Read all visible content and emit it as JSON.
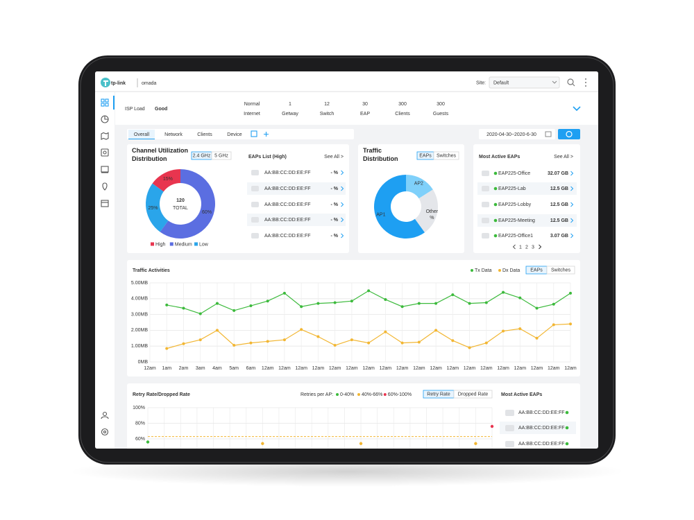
{
  "header": {
    "brand": "tp-link",
    "product": "omada",
    "site_label": "Site:",
    "site": "Default"
  },
  "summary": {
    "label": "ISP Load",
    "status": "Good",
    "stats": [
      {
        "value": "Normal",
        "label": "Internet"
      },
      {
        "value": 1,
        "label": "Getway"
      },
      {
        "value": 12,
        "label": "Switch"
      },
      {
        "value": 30,
        "label": "EAP"
      },
      {
        "value": 300,
        "label": "Clients"
      },
      {
        "value": 300,
        "label": "Guests"
      }
    ]
  },
  "tabs": {
    "items": [
      "Overall",
      "Network",
      "Clients",
      "Device"
    ],
    "date_range": "2020-04-30~2020-6-30"
  },
  "eaps_list": {
    "title": "EAPs List (High)",
    "see_all": "See All >",
    "rows": [
      {
        "mac": "AA:BB:CC:DD:EE:FF",
        "rate": "- %"
      },
      {
        "mac": "AA:BB:CC:DD:EE:FF",
        "rate": "- %"
      },
      {
        "mac": "AA:BB:CC:DD:EE:FF",
        "rate": "- %"
      },
      {
        "mac": "AA:BB:CC:DD:EE:FF",
        "rate": "- %"
      },
      {
        "mac": "AA:BB:CC:DD:EE:FF",
        "rate": "- %"
      }
    ]
  },
  "most_active": {
    "title": "Most Active EAPs",
    "see_all": "See All >",
    "rows": [
      {
        "name": "EAP225-Office",
        "traffic": "32.07 GB"
      },
      {
        "name": "EAP225-Lab",
        "traffic": "12.5 GB"
      },
      {
        "name": "EAP225-Lobby",
        "traffic": "12.5 GB"
      },
      {
        "name": "EAP225-Meeting",
        "traffic": "12.5 GB"
      },
      {
        "name": "EAP225-Office1",
        "traffic": "3.07 GB"
      }
    ],
    "pages": [
      1,
      2,
      3
    ]
  },
  "retry_eaps": {
    "title": "Most Active EAPs",
    "rows": [
      "AA:BB:CC:DD:EE:FF",
      "AA:BB:CC:DD:EE:FF",
      "AA:BB:CC:DD:EE:FF"
    ]
  },
  "chart_data": [
    {
      "type": "pie",
      "title": "Channel Utilization Distribution",
      "bands": [
        "2.4 GHz",
        "5 GHz"
      ],
      "center_value": 120,
      "center_label": "TOTAL",
      "categories": [
        "High",
        "Medium",
        "Low"
      ],
      "values": [
        15,
        60,
        25
      ],
      "value_labels": [
        "15%",
        "60%",
        "25%"
      ],
      "colors": [
        "#e8354f",
        "#5b6ee1",
        "#2aa5ea"
      ]
    },
    {
      "type": "pie",
      "title": "Traffic Distribution",
      "toggle": [
        "EAPs",
        "Switches"
      ],
      "categories": [
        "AP1",
        "AP2",
        "Other"
      ],
      "values": [
        60,
        16,
        24
      ],
      "colors": [
        "#1e9ff2",
        "#7fd0fa",
        "#e4e6ea"
      ],
      "other_note": "%"
    },
    {
      "type": "line",
      "title": "Traffic Activities",
      "toggle": [
        "EAPs",
        "Switches"
      ],
      "categories": [
        "12am",
        "1am",
        "2am",
        "3am",
        "4am",
        "5am",
        "6am",
        "12am",
        "12am",
        "12am",
        "12am",
        "12am",
        "12am",
        "12am",
        "12am",
        "12am",
        "12am",
        "12am",
        "12am",
        "12am",
        "12am",
        "12am",
        "12am",
        "12am",
        "12am",
        "12am"
      ],
      "series": [
        {
          "name": "Tx Data",
          "color": "#3cba3c",
          "values": [
            null,
            3.6,
            3.4,
            3.05,
            3.7,
            3.25,
            3.55,
            3.85,
            4.35,
            3.5,
            3.7,
            3.75,
            3.85,
            4.5,
            3.95,
            3.5,
            3.7,
            3.7,
            4.25,
            3.7,
            3.75,
            4.4,
            4.05,
            3.4,
            3.65,
            4.35
          ]
        },
        {
          "name": "Dx Data",
          "color": "#f2b632",
          "values": [
            null,
            0.85,
            1.15,
            1.4,
            2.0,
            1.05,
            1.2,
            1.3,
            1.4,
            2.05,
            1.6,
            1.05,
            1.4,
            1.2,
            1.9,
            1.2,
            1.25,
            2.0,
            1.35,
            0.9,
            1.2,
            1.95,
            2.1,
            1.5,
            2.35,
            2.4
          ]
        }
      ],
      "ylim": [
        0,
        5
      ],
      "yticks": [
        {
          "value": 0,
          "label": "0MB"
        },
        {
          "value": 1,
          "label": "1.00MB"
        },
        {
          "value": 2,
          "label": "2.00MB"
        },
        {
          "value": 3,
          "label": "3.00MB"
        },
        {
          "value": 4,
          "label": "4.00MB"
        },
        {
          "value": 5,
          "label": "5.00MB"
        }
      ],
      "grid": true
    },
    {
      "type": "scatter",
      "title": "Retry Rate/Dropped Rate",
      "legend_title": "Retries per AP:",
      "toggle": [
        "Retry Rate",
        "Dropped Rate"
      ],
      "series": [
        {
          "name": "0-40%",
          "color": "#3cba3c",
          "x": [
            0
          ],
          "values": [
            56
          ]
        },
        {
          "name": "40%-66%",
          "color": "#f2b632",
          "x": [
            7,
            13,
            20
          ],
          "values": [
            54,
            54,
            54
          ]
        },
        {
          "name": "60%-100%",
          "color": "#e8354f",
          "x": [
            21
          ],
          "values": [
            76
          ]
        }
      ],
      "xlim": [
        0,
        21
      ],
      "ylim": [
        40,
        100
      ],
      "yticks": [
        {
          "value": 60,
          "label": "60%"
        },
        {
          "value": 80,
          "label": "80%"
        },
        {
          "value": 100,
          "label": "100%"
        }
      ],
      "threshold": 63,
      "grid": true
    }
  ]
}
